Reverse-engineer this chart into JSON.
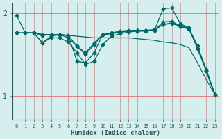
{
  "xlabel": "Humidex (Indice chaleur)",
  "bg_color": "#d6eeee",
  "plot_bg_color": "#d6eeee",
  "line_color": "#006868",
  "grid_color_v": "#c8a0a0",
  "grid_color_h": "#e08080",
  "xmin": -0.5,
  "xmax": 23.5,
  "ymin": 0.72,
  "ymax": 2.12,
  "yticks": [
    1,
    2
  ],
  "xticks": [
    0,
    1,
    2,
    3,
    4,
    5,
    6,
    7,
    8,
    9,
    10,
    11,
    12,
    13,
    14,
    15,
    16,
    17,
    18,
    19,
    20,
    21,
    22,
    23
  ],
  "lines": [
    {
      "x": [
        0,
        1,
        2,
        3,
        4,
        5,
        6,
        7,
        8,
        9,
        10,
        11,
        12,
        13,
        14,
        15,
        16,
        17,
        18,
        19,
        20,
        21,
        22,
        23
      ],
      "y": [
        1.97,
        1.76,
        1.76,
        1.64,
        1.72,
        1.74,
        1.7,
        1.6,
        1.52,
        1.64,
        1.74,
        1.76,
        1.78,
        1.79,
        1.79,
        1.79,
        1.8,
        1.86,
        1.88,
        1.85,
        1.82,
        1.57,
        1.32,
        1.02
      ],
      "marker": "D",
      "markersize": 2.5
    },
    {
      "x": [
        0,
        1,
        2,
        3,
        4,
        5,
        6,
        7,
        8,
        9,
        10,
        11,
        12,
        13,
        14,
        15,
        16,
        17,
        18,
        19,
        20,
        21,
        22,
        23
      ],
      "y": [
        1.76,
        1.76,
        1.76,
        1.73,
        1.74,
        1.74,
        1.73,
        1.42,
        1.4,
        1.52,
        1.74,
        1.75,
        1.77,
        1.78,
        1.79,
        1.79,
        1.79,
        2.05,
        2.06,
        1.87,
        1.82,
        1.6,
        1.32,
        1.02
      ],
      "marker": "D",
      "markersize": 2.5
    },
    {
      "x": [
        0,
        1,
        2,
        3,
        4,
        5,
        6,
        7,
        8,
        9,
        10,
        11,
        12,
        13,
        14,
        15,
        16,
        17,
        18,
        19,
        20,
        21,
        22,
        23
      ],
      "y": [
        1.76,
        1.76,
        1.76,
        1.74,
        1.74,
        1.74,
        1.73,
        1.6,
        1.5,
        1.62,
        1.74,
        1.75,
        1.77,
        1.78,
        1.79,
        1.79,
        1.79,
        1.89,
        1.9,
        1.84,
        1.8,
        1.6,
        1.3,
        1.02
      ],
      "marker": "D",
      "markersize": 2.5
    },
    {
      "x": [
        0,
        1,
        2,
        3,
        4,
        5,
        6,
        7,
        8,
        9,
        10,
        11,
        12,
        13,
        14,
        15,
        16,
        17,
        18,
        19,
        20,
        21,
        22,
        23
      ],
      "y": [
        1.76,
        1.76,
        1.76,
        1.74,
        1.74,
        1.73,
        1.73,
        1.72,
        1.71,
        1.7,
        1.7,
        1.7,
        1.7,
        1.7,
        1.69,
        1.68,
        1.67,
        1.65,
        1.64,
        1.62,
        1.58,
        1.4,
        1.2,
        1.02
      ],
      "marker": null,
      "markersize": 0
    },
    {
      "x": [
        1,
        2,
        3,
        4,
        5,
        6,
        7,
        8,
        9,
        10,
        11,
        12,
        13,
        14,
        15,
        16,
        17,
        18,
        19,
        20,
        21,
        22,
        23
      ],
      "y": [
        1.76,
        1.76,
        1.64,
        1.7,
        1.7,
        1.65,
        1.52,
        1.38,
        1.42,
        1.62,
        1.72,
        1.75,
        1.77,
        1.78,
        1.78,
        1.79,
        1.86,
        1.87,
        1.84,
        1.81,
        1.57,
        1.3,
        1.02
      ],
      "marker": "D",
      "markersize": 2.5
    }
  ]
}
